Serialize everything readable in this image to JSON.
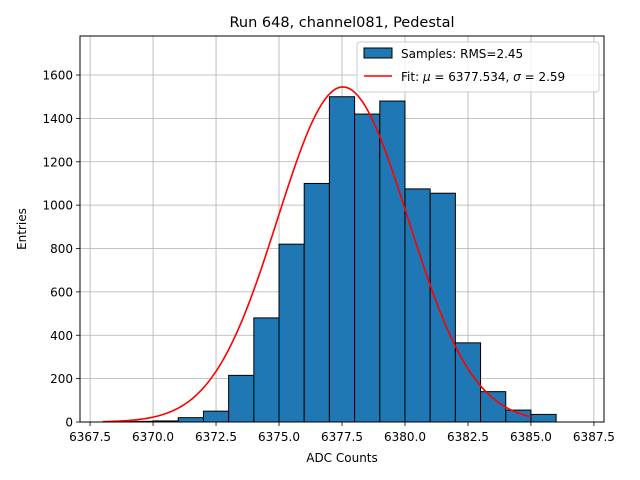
{
  "chart_data": {
    "type": "bar",
    "title": "Run 648, channel081, Pedestal",
    "xlabel": "ADC Counts",
    "ylabel": "Entries",
    "xlim": [
      6367.1,
      6387.9
    ],
    "ylim": [
      0,
      1780
    ],
    "grid": true,
    "legend_position": "top-right",
    "xticks": [
      "6367.5",
      "6370.0",
      "6372.5",
      "6375.0",
      "6377.5",
      "6380.0",
      "6382.5",
      "6385.0",
      "6387.5"
    ],
    "xtick_values": [
      6367.5,
      6370.0,
      6372.5,
      6375.0,
      6377.5,
      6380.0,
      6382.5,
      6385.0,
      6387.5
    ],
    "yticks": [
      "0",
      "200",
      "400",
      "600",
      "800",
      "1000",
      "1200",
      "1400",
      "1600"
    ],
    "ytick_values": [
      0,
      200,
      400,
      600,
      800,
      1000,
      1200,
      1400,
      1600
    ],
    "bin_edges": [
      6369,
      6370,
      6371,
      6372,
      6373,
      6374,
      6375,
      6376,
      6377,
      6378,
      6379,
      6380,
      6381,
      6382,
      6383,
      6384,
      6385
    ],
    "values": [
      3,
      5,
      20,
      50,
      215,
      480,
      820,
      1100,
      1500,
      1420,
      1480,
      1075,
      1055,
      365,
      140,
      55,
      35
    ],
    "bars": [
      {
        "x0": 6369,
        "x1": 6370,
        "y": 3
      },
      {
        "x0": 6370,
        "x1": 6371,
        "y": 5
      },
      {
        "x0": 6371,
        "x1": 6372,
        "y": 20
      },
      {
        "x0": 6372,
        "x1": 6373,
        "y": 50
      },
      {
        "x0": 6373,
        "x1": 6374,
        "y": 215
      },
      {
        "x0": 6374,
        "x1": 6375,
        "y": 480
      },
      {
        "x0": 6375,
        "x1": 6376,
        "y": 820
      },
      {
        "x0": 6376,
        "x1": 6377,
        "y": 1100
      },
      {
        "x0": 6377,
        "x1": 6378,
        "y": 1500
      },
      {
        "x0": 6378,
        "x1": 6379,
        "y": 1420
      },
      {
        "x0": 6379,
        "x1": 6380,
        "y": 1480
      },
      {
        "x0": 6380,
        "x1": 6381,
        "y": 1075
      },
      {
        "x0": 6381,
        "x1": 6382,
        "y": 1055
      },
      {
        "x0": 6382,
        "x1": 6383,
        "y": 365
      },
      {
        "x0": 6383,
        "x1": 6384,
        "y": 140
      },
      {
        "x0": 6384,
        "x1": 6385,
        "y": 55
      },
      {
        "x0": 6385,
        "x1": 6386,
        "y": 35
      }
    ],
    "fit": {
      "type": "gaussian",
      "mu": 6377.534,
      "sigma": 2.59,
      "amplitude": 1545,
      "x_range": [
        6368.0,
        6385.0
      ]
    },
    "series": [
      {
        "name": "Samples: RMS=2.45",
        "kind": "histogram",
        "color": "#1f77b4"
      },
      {
        "name": "Fit: μ = 6377.534, σ = 2.59",
        "kind": "line",
        "color": "#ff0000"
      }
    ],
    "legend": {
      "hist_label": "Samples: RMS=2.45",
      "fit_prefix": "Fit: ",
      "fit_mu_symbol": "μ",
      "fit_mu_rest": " = 6377.534, ",
      "fit_sigma_symbol": "σ",
      "fit_sigma_rest": " = 2.59"
    },
    "colors": {
      "bar_fill": "#1f77b4",
      "bar_edge": "#000000",
      "fit_line": "#ff0000",
      "grid": "#b0b0b0"
    }
  }
}
